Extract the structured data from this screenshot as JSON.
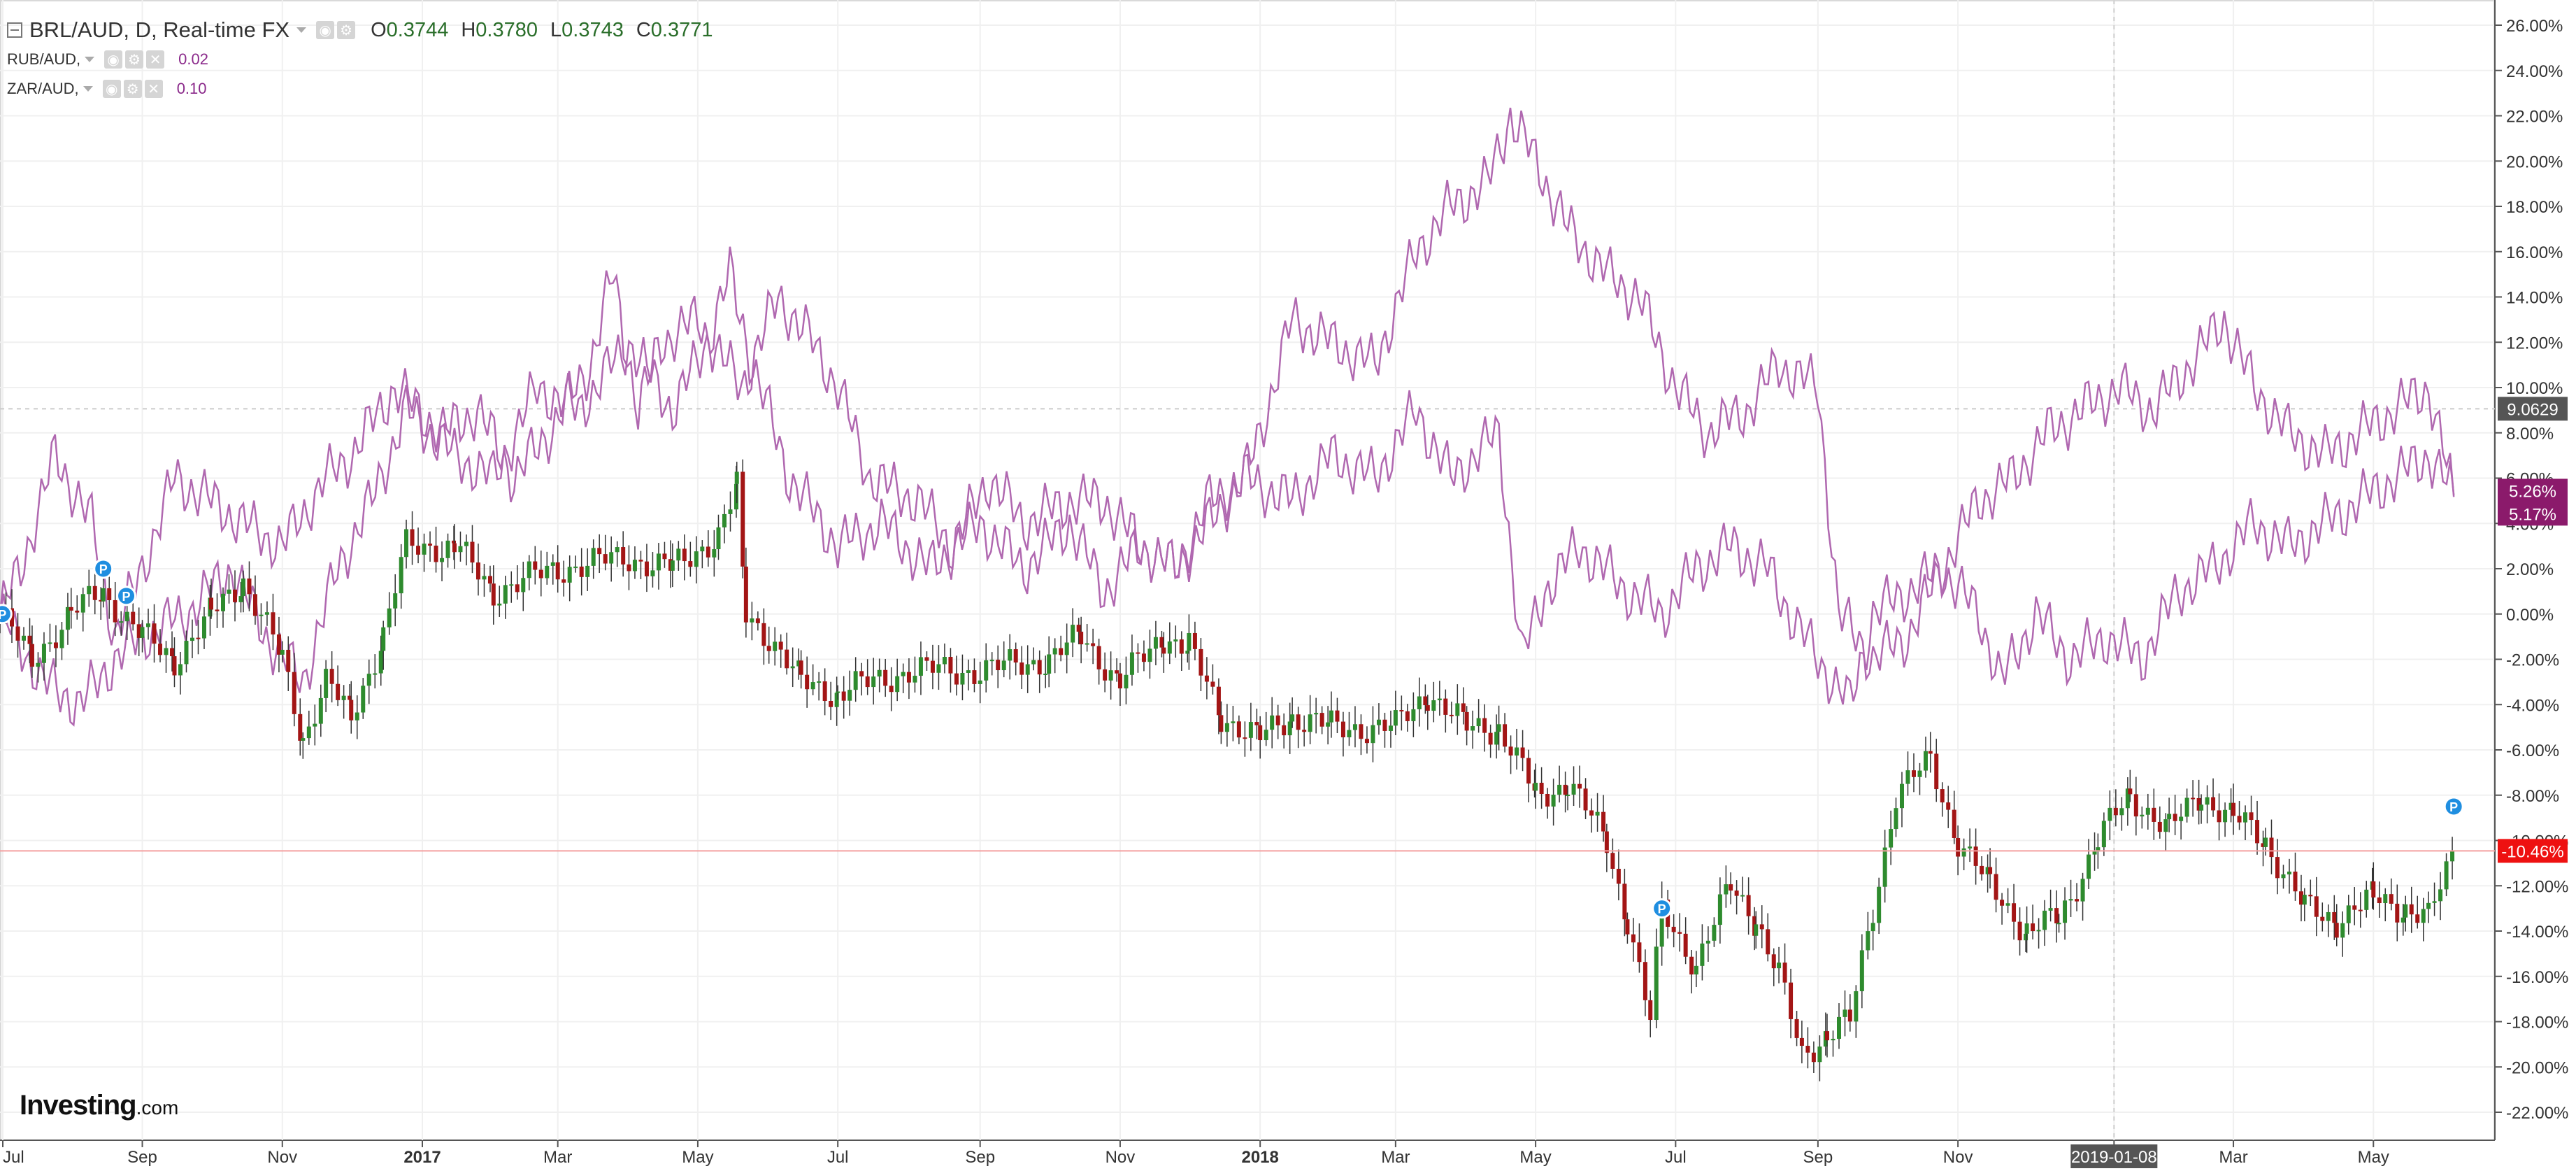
{
  "legend": {
    "main": {
      "title": "BRL/AUD, D, Real-time FX",
      "o_label": "O",
      "o": "0.3744",
      "h_label": "H",
      "h": "0.3780",
      "l_label": "L",
      "l": "0.3743",
      "c_label": "C",
      "c": "0.3771"
    },
    "series": [
      {
        "title": "RUB/AUD,",
        "value": "0.02"
      },
      {
        "title": "ZAR/AUD,",
        "value": "0.10"
      }
    ]
  },
  "logo": {
    "main": "Investing",
    "sub": ".com"
  },
  "colors": {
    "up": "#2e8b2e",
    "down": "#a31515",
    "wick": "#333333",
    "compare_line": "#b068b0",
    "current_line": "#f4a0a0",
    "grid": "#f0f0f0"
  },
  "chart_data": {
    "type": "candlestick",
    "title": "BRL/AUD, D, Real-time FX",
    "y_unit": "%",
    "ylim": [
      -23,
      27
    ],
    "y_ticks": [
      "26.00%",
      "24.00%",
      "22.00%",
      "20.00%",
      "18.00%",
      "16.00%",
      "14.00%",
      "12.00%",
      "10.00%",
      "8.00%",
      "6.00%",
      "4.00%",
      "2.00%",
      "0.00%",
      "-2.00%",
      "-4.00%",
      "-6.00%",
      "-8.00%",
      "-10.00%",
      "-12.00%",
      "-14.00%",
      "-16.00%",
      "-18.00%",
      "-20.00%",
      "-22.00%"
    ],
    "x_ticks": [
      "Jul",
      "Sep",
      "Nov",
      "2017",
      "Mar",
      "May",
      "Jul",
      "Sep",
      "Nov",
      "2018",
      "Mar",
      "May",
      "Jul",
      "Sep",
      "Nov",
      "2019-01-08",
      "Mar",
      "May"
    ],
    "x_range": [
      "2016-07-01",
      "2019-06-15"
    ],
    "grid": true,
    "candles": {
      "name": "BRL/AUD",
      "points": [
        [
          "2016-07-01",
          0
        ],
        [
          "2016-07-15",
          -2
        ],
        [
          "2016-08-01",
          0
        ],
        [
          "2016-08-15",
          1
        ],
        [
          "2016-09-01",
          -1
        ],
        [
          "2016-09-15",
          -2
        ],
        [
          "2016-10-01",
          0
        ],
        [
          "2016-10-15",
          1.5
        ],
        [
          "2016-11-01",
          -2
        ],
        [
          "2016-11-10",
          -5.5
        ],
        [
          "2016-11-20",
          -3
        ],
        [
          "2016-12-01",
          -4.5
        ],
        [
          "2016-12-15",
          -1
        ],
        [
          "2016-12-25",
          3
        ],
        [
          "2017-01-15",
          3
        ],
        [
          "2017-02-01",
          1
        ],
        [
          "2017-03-01",
          2
        ],
        [
          "2017-04-01",
          2.5
        ],
        [
          "2017-04-20",
          2
        ],
        [
          "2017-05-10",
          3.5
        ],
        [
          "2017-05-18",
          5.5
        ],
        [
          "2017-05-22",
          0
        ],
        [
          "2017-06-01",
          -1
        ],
        [
          "2017-06-15",
          -3
        ],
        [
          "2017-07-01",
          -3.5
        ],
        [
          "2017-08-01",
          -2.5
        ],
        [
          "2017-09-01",
          -2.5
        ],
        [
          "2017-10-01",
          -2
        ],
        [
          "2017-10-15",
          -1
        ],
        [
          "2017-11-01",
          -3
        ],
        [
          "2017-11-20",
          -1
        ],
        [
          "2017-12-01",
          -1.5
        ],
        [
          "2017-12-15",
          -4.5
        ],
        [
          "2018-01-01",
          -5.5
        ],
        [
          "2018-01-15",
          -4.5
        ],
        [
          "2018-02-01",
          -5
        ],
        [
          "2018-03-01",
          -5
        ],
        [
          "2018-03-15",
          -3.5
        ],
        [
          "2018-04-01",
          -5
        ],
        [
          "2018-04-15",
          -5
        ],
        [
          "2018-05-01",
          -8
        ],
        [
          "2018-05-15",
          -7.5
        ],
        [
          "2018-06-01",
          -10
        ],
        [
          "2018-06-10",
          -13.5
        ],
        [
          "2018-06-20",
          -18
        ],
        [
          "2018-06-25",
          -13
        ],
        [
          "2018-07-10",
          -15.5
        ],
        [
          "2018-07-25",
          -12
        ],
        [
          "2018-08-05",
          -13.5
        ],
        [
          "2018-08-15",
          -16
        ],
        [
          "2018-08-25",
          -19.5
        ],
        [
          "2018-09-05",
          -18.5
        ],
        [
          "2018-09-15",
          -18
        ],
        [
          "2018-09-25",
          -13
        ],
        [
          "2018-10-05",
          -8
        ],
        [
          "2018-10-20",
          -6.5
        ],
        [
          "2018-11-01",
          -10
        ],
        [
          "2018-11-15",
          -12
        ],
        [
          "2018-12-01",
          -14
        ],
        [
          "2018-12-15",
          -13.5
        ],
        [
          "2019-01-01",
          -10
        ],
        [
          "2019-01-15",
          -8
        ],
        [
          "2019-02-01",
          -9.5
        ],
        [
          "2019-02-15",
          -8
        ],
        [
          "2019-03-01",
          -9
        ],
        [
          "2019-03-15",
          -10
        ],
        [
          "2019-04-01",
          -13
        ],
        [
          "2019-04-15",
          -13.5
        ],
        [
          "2019-05-01",
          -12.5
        ],
        [
          "2019-05-15",
          -13
        ],
        [
          "2019-05-25",
          -13.5
        ],
        [
          "2019-06-05",
          -10.46
        ]
      ]
    },
    "series": [
      {
        "name": "RUB/AUD",
        "label": "5.26%",
        "points": [
          [
            "2016-07-01",
            0
          ],
          [
            "2016-07-20",
            -3
          ],
          [
            "2016-08-05",
            -4
          ],
          [
            "2016-08-20",
            -2
          ],
          [
            "2016-09-01",
            -1
          ],
          [
            "2016-09-20",
            0
          ],
          [
            "2016-10-10",
            2
          ],
          [
            "2016-10-25",
            -1
          ],
          [
            "2016-11-10",
            -3
          ],
          [
            "2016-11-25",
            2
          ],
          [
            "2016-12-10",
            5
          ],
          [
            "2016-12-25",
            9
          ],
          [
            "2017-01-15",
            7
          ],
          [
            "2017-02-01",
            6
          ],
          [
            "2017-02-20",
            10
          ],
          [
            "2017-03-10",
            9
          ],
          [
            "2017-04-01",
            12
          ],
          [
            "2017-04-20",
            9
          ],
          [
            "2017-05-05",
            12
          ],
          [
            "2017-05-15",
            15
          ],
          [
            "2017-05-25",
            11
          ],
          [
            "2017-06-10",
            6
          ],
          [
            "2017-07-01",
            3
          ],
          [
            "2017-07-20",
            4
          ],
          [
            "2017-08-10",
            2
          ],
          [
            "2017-09-01",
            4
          ],
          [
            "2017-09-20",
            2
          ],
          [
            "2017-10-10",
            4
          ],
          [
            "2017-10-25",
            1
          ],
          [
            "2017-11-10",
            3
          ],
          [
            "2017-11-25",
            2
          ],
          [
            "2017-12-10",
            5
          ],
          [
            "2017-12-25",
            6
          ],
          [
            "2018-01-15",
            5
          ],
          [
            "2018-02-01",
            7
          ],
          [
            "2018-02-20",
            6
          ],
          [
            "2018-03-10",
            9
          ],
          [
            "2018-03-25",
            6
          ],
          [
            "2018-04-15",
            8
          ],
          [
            "2018-04-25",
            -2
          ],
          [
            "2018-05-05",
            1
          ],
          [
            "2018-05-20",
            3
          ],
          [
            "2018-06-10",
            1
          ],
          [
            "2018-06-25",
            0
          ],
          [
            "2018-07-10",
            2
          ],
          [
            "2018-07-25",
            3
          ],
          [
            "2018-08-10",
            2
          ],
          [
            "2018-08-20",
            0
          ],
          [
            "2018-09-01",
            -2
          ],
          [
            "2018-09-15",
            -4
          ],
          [
            "2018-09-25",
            0
          ],
          [
            "2018-10-10",
            1
          ],
          [
            "2018-10-25",
            2
          ],
          [
            "2018-11-10",
            0
          ],
          [
            "2018-11-20",
            -3
          ],
          [
            "2018-12-05",
            0
          ],
          [
            "2018-12-20",
            -2
          ],
          [
            "2019-01-05",
            -1
          ],
          [
            "2019-01-20",
            -2
          ],
          [
            "2019-02-05",
            1
          ],
          [
            "2019-02-20",
            2
          ],
          [
            "2019-03-10",
            4
          ],
          [
            "2019-03-25",
            3
          ],
          [
            "2019-04-10",
            4
          ],
          [
            "2019-04-25",
            5
          ],
          [
            "2019-05-10",
            6
          ],
          [
            "2019-05-25",
            7
          ],
          [
            "2019-06-05",
            5.26
          ]
        ]
      },
      {
        "name": "ZAR/AUD",
        "label": "5.17%",
        "points": [
          [
            "2016-07-01",
            0
          ],
          [
            "2016-07-10",
            2
          ],
          [
            "2016-07-25",
            7
          ],
          [
            "2016-08-10",
            4
          ],
          [
            "2016-08-20",
            -1
          ],
          [
            "2016-09-01",
            2
          ],
          [
            "2016-09-15",
            6
          ],
          [
            "2016-10-01",
            5
          ],
          [
            "2016-10-15",
            4
          ],
          [
            "2016-11-01",
            3
          ],
          [
            "2016-11-20",
            6
          ],
          [
            "2016-12-01",
            7
          ],
          [
            "2016-12-20",
            10
          ],
          [
            "2017-01-10",
            8
          ],
          [
            "2017-01-25",
            9
          ],
          [
            "2017-02-10",
            6
          ],
          [
            "2017-02-25",
            8
          ],
          [
            "2017-03-15",
            11
          ],
          [
            "2017-03-25",
            15
          ],
          [
            "2017-04-05",
            9
          ],
          [
            "2017-04-15",
            12
          ],
          [
            "2017-05-01",
            13
          ],
          [
            "2017-05-20",
            10
          ],
          [
            "2017-06-05",
            14
          ],
          [
            "2017-06-20",
            12
          ],
          [
            "2017-07-01",
            10
          ],
          [
            "2017-07-15",
            6
          ],
          [
            "2017-08-05",
            5
          ],
          [
            "2017-08-20",
            3
          ],
          [
            "2017-09-05",
            6
          ],
          [
            "2017-09-20",
            4
          ],
          [
            "2017-10-10",
            5
          ],
          [
            "2017-10-25",
            5
          ],
          [
            "2017-11-10",
            3
          ],
          [
            "2017-11-25",
            2
          ],
          [
            "2017-12-10",
            4
          ],
          [
            "2017-12-25",
            6
          ],
          [
            "2018-01-01",
            8
          ],
          [
            "2018-01-15",
            13
          ],
          [
            "2018-02-01",
            12
          ],
          [
            "2018-02-20",
            11
          ],
          [
            "2018-03-10",
            16
          ],
          [
            "2018-03-25",
            18
          ],
          [
            "2018-04-10",
            19
          ],
          [
            "2018-04-20",
            22
          ],
          [
            "2018-05-01",
            20
          ],
          [
            "2018-05-15",
            17
          ],
          [
            "2018-06-01",
            15
          ],
          [
            "2018-06-15",
            14
          ],
          [
            "2018-07-01",
            10
          ],
          [
            "2018-07-15",
            8
          ],
          [
            "2018-08-01",
            9
          ],
          [
            "2018-08-15",
            11
          ],
          [
            "2018-09-01",
            10
          ],
          [
            "2018-09-10",
            0
          ],
          [
            "2018-09-25",
            -2
          ],
          [
            "2018-10-10",
            -1
          ],
          [
            "2018-10-25",
            2
          ],
          [
            "2018-11-10",
            5
          ],
          [
            "2018-11-25",
            6
          ],
          [
            "2018-12-10",
            8
          ],
          [
            "2018-12-25",
            9
          ],
          [
            "2019-01-10",
            10
          ],
          [
            "2019-01-25",
            9
          ],
          [
            "2019-02-10",
            11
          ],
          [
            "2019-02-25",
            13
          ],
          [
            "2019-03-10",
            10
          ],
          [
            "2019-03-25",
            8
          ],
          [
            "2019-04-10",
            7
          ],
          [
            "2019-04-25",
            8
          ],
          [
            "2019-05-10",
            9
          ],
          [
            "2019-05-25",
            10
          ],
          [
            "2019-06-05",
            5.17
          ]
        ]
      }
    ],
    "price_badges": [
      {
        "label": "9.0629",
        "y": 9.0629,
        "color": "#555555"
      },
      {
        "label": "-10.46%",
        "y": -10.46,
        "color": "#ee1111"
      }
    ],
    "current_line": -10.46,
    "reference_line": 9.0629,
    "markers": [
      {
        "date": "2016-07-02",
        "y": 0,
        "label": "P"
      },
      {
        "date": "2016-08-15",
        "y": 2,
        "label": "P"
      },
      {
        "date": "2016-08-25",
        "y": 0.8,
        "label": "P"
      },
      {
        "date": "2018-06-25",
        "y": -13,
        "label": "P"
      },
      {
        "date": "2019-06-05",
        "y": -8.5,
        "label": "P"
      }
    ]
  }
}
